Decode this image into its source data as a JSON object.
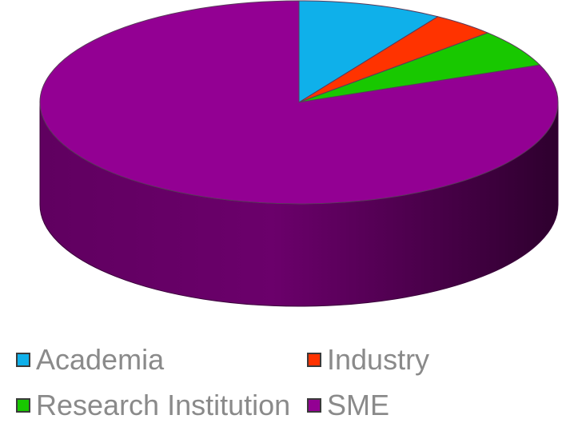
{
  "chart_data": {
    "type": "pie",
    "style": "3d",
    "title": "",
    "legend_position": "bottom",
    "series": [
      {
        "slices": [
          {
            "label": "Academia",
            "value": 9,
            "color": "#0fb0ea"
          },
          {
            "label": "Industry",
            "value": 4,
            "color": "#ff3300"
          },
          {
            "label": "Research Institution",
            "value": 6,
            "color": "#18c800"
          },
          {
            "label": "SME",
            "value": 81,
            "color": "#930093"
          }
        ]
      }
    ]
  },
  "legend": {
    "items": [
      {
        "label": "Academia",
        "color": "#0fb0ea"
      },
      {
        "label": "Industry",
        "color": "#ff3300"
      },
      {
        "label": "Research Institution",
        "color": "#18c800"
      },
      {
        "label": "SME",
        "color": "#930093"
      }
    ]
  }
}
